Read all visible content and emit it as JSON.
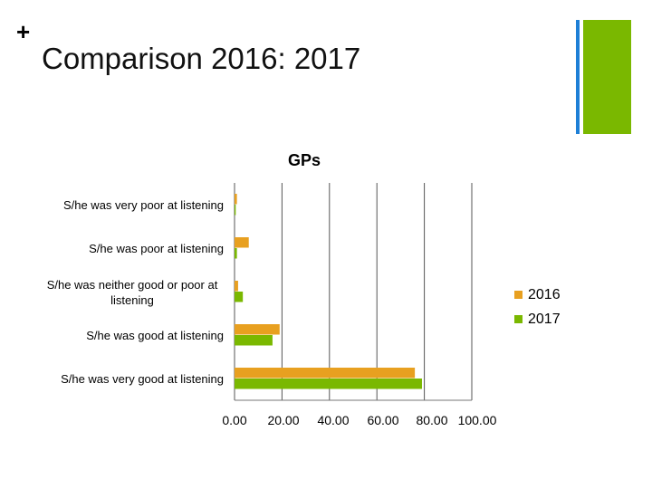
{
  "slide": {
    "plus": "+",
    "title": "Comparison 2016: 2017",
    "accent_blue": "#1e7fd6",
    "accent_green": "#7ab800"
  },
  "chart_data": {
    "type": "bar",
    "orientation": "horizontal",
    "title": "GPs",
    "categories": [
      "S/he was very poor at listening",
      "S/he was poor at listening",
      "S/he was neither good or poor at listening",
      "S/he was good at listening",
      "S/he was very good at listening"
    ],
    "series": [
      {
        "name": "2016",
        "color": "#e8a020",
        "values": [
          1,
          6,
          1.5,
          19,
          76
        ]
      },
      {
        "name": "2017",
        "color": "#7ab800",
        "values": [
          0.5,
          1,
          3.5,
          16,
          79
        ]
      }
    ],
    "xlim": [
      0,
      100
    ],
    "xticks": [
      "0.00",
      "20.00",
      "40.00",
      "60.00",
      "80.00",
      "100.00"
    ],
    "grid": true,
    "legend": "right"
  }
}
